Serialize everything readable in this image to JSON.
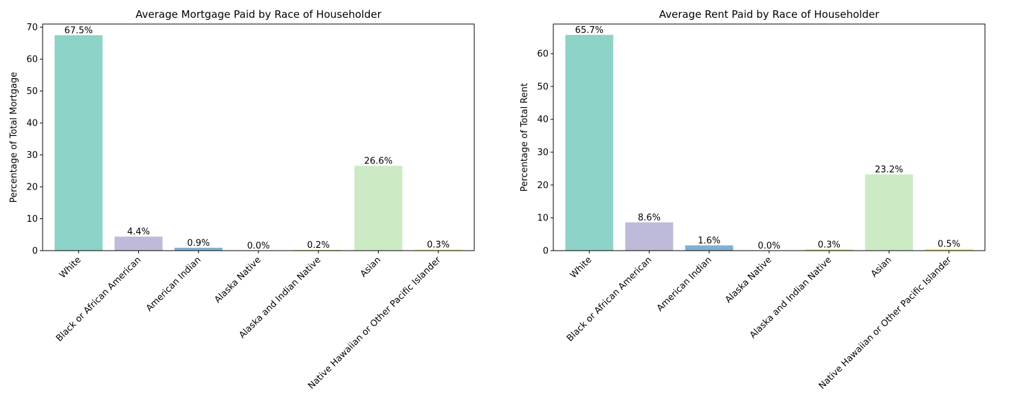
{
  "chart_data": [
    {
      "type": "bar",
      "title": "Average Mortgage Paid by Race of Householder",
      "xlabel": "",
      "ylabel": "Percentage of Total Mortgage",
      "categories": [
        "White",
        "Black or African American",
        "American Indian",
        "Alaska Native",
        "Alaska and Indian Native",
        "Asian",
        "Native Hawaiian or Other Pacific Islander"
      ],
      "values": [
        67.5,
        4.4,
        0.9,
        0.0,
        0.2,
        26.6,
        0.3
      ],
      "data_labels": [
        "67.5%",
        "4.4%",
        "0.9%",
        "0.0%",
        "0.2%",
        "26.6%",
        "0.3%"
      ],
      "colors": [
        "#8dd3c7",
        "#bebada",
        "#80b1d3",
        "#fb8072",
        "#b3de69",
        "#ccebc5",
        "#ffed6f"
      ],
      "ylim": [
        0,
        71
      ],
      "yticks": [
        0,
        10,
        20,
        30,
        40,
        50,
        60,
        70
      ],
      "grid": false,
      "legend": "none"
    },
    {
      "type": "bar",
      "title": "Average Rent Paid by Race of Householder",
      "xlabel": "",
      "ylabel": "Percentage of Total Rent",
      "categories": [
        "White",
        "Black or African American",
        "American Indian",
        "Alaska Native",
        "Alaska and Indian Native",
        "Asian",
        "Native Hawaiian or Other Pacific Islander"
      ],
      "values": [
        65.7,
        8.6,
        1.6,
        0.0,
        0.3,
        23.2,
        0.5
      ],
      "data_labels": [
        "65.7%",
        "8.6%",
        "1.6%",
        "0.0%",
        "0.3%",
        "23.2%",
        "0.5%"
      ],
      "colors": [
        "#8dd3c7",
        "#bebada",
        "#80b1d3",
        "#fb8072",
        "#b3de69",
        "#ccebc5",
        "#ffed6f"
      ],
      "ylim": [
        0,
        69
      ],
      "yticks": [
        0,
        10,
        20,
        30,
        40,
        50,
        60
      ],
      "grid": false,
      "legend": "none"
    }
  ]
}
